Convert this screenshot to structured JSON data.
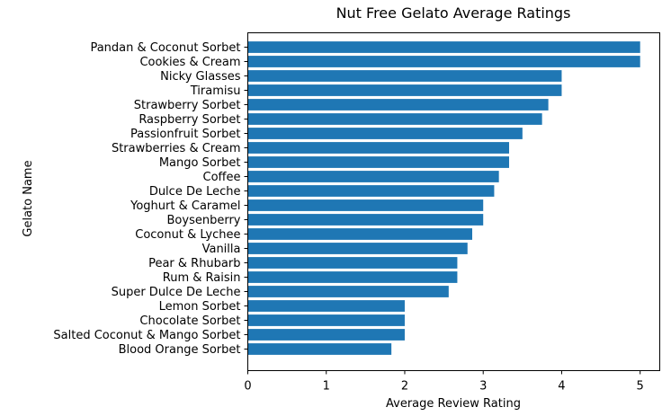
{
  "chart_data": {
    "type": "bar",
    "orientation": "horizontal",
    "title": "Nut Free Gelato Average Ratings",
    "xlabel": "Average Review Rating",
    "ylabel": "Gelato Name",
    "xlim": [
      0,
      5.25
    ],
    "xticks": [
      "0",
      "1",
      "2",
      "3",
      "4",
      "5"
    ],
    "grid": false,
    "bar_color": "#1f77b4",
    "categories": [
      "Pandan & Coconut Sorbet",
      "Cookies & Cream",
      "Nicky Glasses",
      "Tiramisu",
      "Strawberry Sorbet",
      "Raspberry Sorbet",
      "Passionfruit Sorbet",
      "Strawberries & Cream",
      "Mango Sorbet",
      "Coffee",
      "Dulce De Leche",
      "Yoghurt & Caramel",
      "Boysenberry",
      "Coconut & Lychee",
      "Vanilla",
      "Pear & Rhubarb",
      "Rum & Raisin",
      "Super Dulce De Leche",
      "Lemon Sorbet",
      "Chocolate Sorbet",
      "Salted Coconut & Mango Sorbet",
      "Blood Orange Sorbet"
    ],
    "values": [
      5.0,
      5.0,
      4.0,
      4.0,
      3.83,
      3.75,
      3.5,
      3.33,
      3.33,
      3.2,
      3.14,
      3.0,
      3.0,
      2.86,
      2.8,
      2.67,
      2.67,
      2.56,
      2.0,
      2.0,
      2.0,
      1.83
    ]
  }
}
